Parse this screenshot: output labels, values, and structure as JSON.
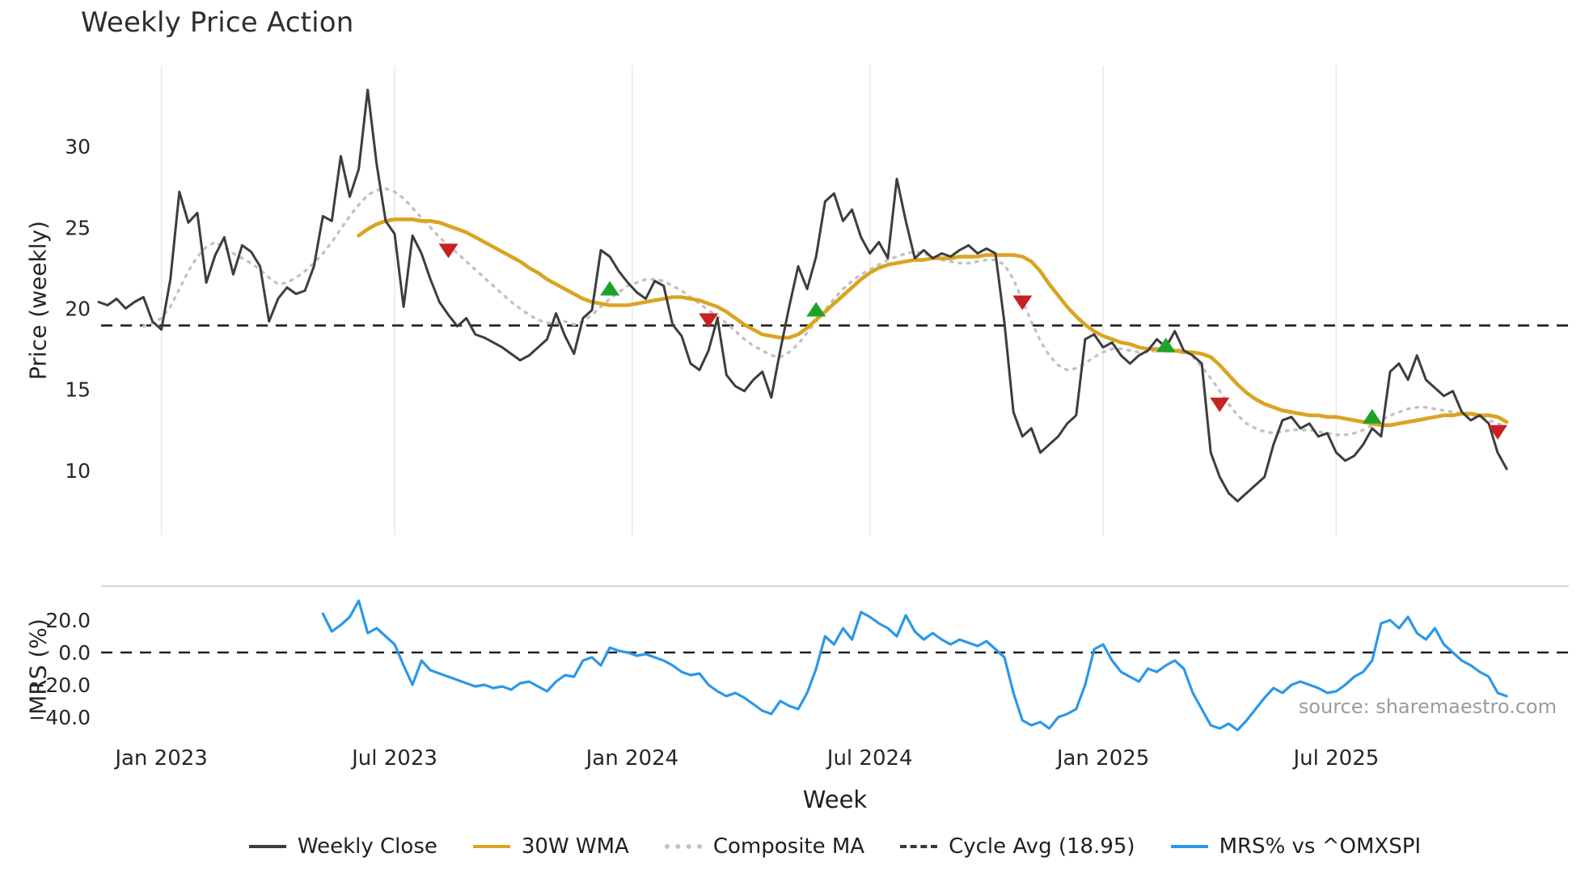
{
  "chart_data": {
    "type": "line",
    "title": "Weekly Price Action",
    "xlabel": "Week",
    "ylabel_price": "Price (weekly)",
    "ylabel_mrs": "MRS (%)",
    "source": "source: sharemaestro.com",
    "cycle_avg": 18.95,
    "ylim_price": [
      6,
      35
    ],
    "ylim_mrs": [
      -55,
      38
    ],
    "grid": "vertical-only",
    "legend_position": "bottom-center",
    "price_ticks": [
      30,
      25,
      20,
      15,
      10
    ],
    "mrs_ticks": [
      {
        "v": 20,
        "label": "20.0"
      },
      {
        "v": 0,
        "label": "0.0"
      },
      {
        "v": -20,
        "label": "−20.0"
      },
      {
        "v": -40,
        "label": "−40.0"
      }
    ],
    "x_ticks": [
      {
        "i": 7,
        "label": "Jan 2023"
      },
      {
        "i": 33,
        "label": "Jul 2023"
      },
      {
        "i": 59.5,
        "label": "Jan 2024"
      },
      {
        "i": 86,
        "label": "Jul 2024"
      },
      {
        "i": 112,
        "label": "Jan 2025"
      },
      {
        "i": 138,
        "label": "Jul 2025"
      }
    ],
    "colors": {
      "buy": "#1ea32a",
      "sell": "#c62222"
    },
    "series": {
      "close": {
        "name": "Weekly Close",
        "color": "#3d3d3d",
        "start": 0,
        "values": [
          20.4,
          20.2,
          20.6,
          20.0,
          20.4,
          20.7,
          19.2,
          18.7,
          21.8,
          27.2,
          25.3,
          25.9,
          21.6,
          23.3,
          24.4,
          22.1,
          23.9,
          23.5,
          22.6,
          19.2,
          20.6,
          21.3,
          20.9,
          21.1,
          22.6,
          25.7,
          25.4,
          29.4,
          26.9,
          28.6,
          33.5,
          28.9,
          25.4,
          24.6,
          20.1,
          24.5,
          23.4,
          21.8,
          20.4,
          19.6,
          18.9,
          19.4,
          18.4,
          18.2,
          17.9,
          17.6,
          17.2,
          16.8,
          17.1,
          17.6,
          18.1,
          19.7,
          18.3,
          17.2,
          19.4,
          19.9,
          23.6,
          23.2,
          22.3,
          21.6,
          21.0,
          20.6,
          21.7,
          21.4,
          19.0,
          18.3,
          16.6,
          16.2,
          17.4,
          19.4,
          15.9,
          15.2,
          14.9,
          15.6,
          16.1,
          14.5,
          17.4,
          20.1,
          22.6,
          21.2,
          23.2,
          26.6,
          27.1,
          25.4,
          26.1,
          24.4,
          23.4,
          24.1,
          23.1,
          28.0,
          25.4,
          23.1,
          23.6,
          23.1,
          23.4,
          23.2,
          23.6,
          23.9,
          23.4,
          23.7,
          23.4,
          19.1,
          13.6,
          12.1,
          12.6,
          11.1,
          11.6,
          12.1,
          12.9,
          13.4,
          18.1,
          18.4,
          17.6,
          17.9,
          17.1,
          16.6,
          17.1,
          17.4,
          18.1,
          17.6,
          18.6,
          17.4,
          17.1,
          16.6,
          11.1,
          9.6,
          8.6,
          8.1,
          8.6,
          9.1,
          9.6,
          11.6,
          13.1,
          13.3,
          12.6,
          12.9,
          12.1,
          12.3,
          11.1,
          10.6,
          10.9,
          11.6,
          12.6,
          12.1,
          16.1,
          16.6,
          15.6,
          17.1,
          15.6,
          15.1,
          14.6,
          14.9,
          13.6,
          13.1,
          13.4,
          12.9,
          11.1,
          10.1
        ]
      },
      "wma30": {
        "name": "30W WMA",
        "color": "#d9a521",
        "start": 29,
        "values": [
          24.5,
          24.9,
          25.2,
          25.4,
          25.5,
          25.5,
          25.5,
          25.4,
          25.4,
          25.3,
          25.1,
          24.9,
          24.7,
          24.4,
          24.1,
          23.8,
          23.5,
          23.2,
          22.9,
          22.5,
          22.2,
          21.8,
          21.5,
          21.2,
          20.9,
          20.6,
          20.4,
          20.3,
          20.2,
          20.2,
          20.2,
          20.3,
          20.4,
          20.5,
          20.6,
          20.7,
          20.7,
          20.6,
          20.5,
          20.3,
          20.1,
          19.8,
          19.4,
          19.0,
          18.7,
          18.4,
          18.3,
          18.2,
          18.2,
          18.4,
          18.8,
          19.3,
          19.8,
          20.3,
          20.8,
          21.3,
          21.8,
          22.2,
          22.5,
          22.7,
          22.8,
          22.9,
          23.0,
          23.0,
          23.1,
          23.1,
          23.1,
          23.2,
          23.2,
          23.2,
          23.3,
          23.3,
          23.3,
          23.3,
          23.2,
          22.9,
          22.3,
          21.5,
          20.8,
          20.1,
          19.5,
          19.0,
          18.6,
          18.3,
          18.1,
          17.9,
          17.8,
          17.6,
          17.5,
          17.5,
          17.4,
          17.4,
          17.3,
          17.3,
          17.2,
          17.0,
          16.5,
          15.9,
          15.3,
          14.8,
          14.4,
          14.1,
          13.9,
          13.7,
          13.6,
          13.5,
          13.4,
          13.4,
          13.3,
          13.3,
          13.2,
          13.1,
          13.0,
          12.9,
          12.8,
          12.8,
          12.9,
          13.0,
          13.1,
          13.2,
          13.3,
          13.4,
          13.4,
          13.5,
          13.5,
          13.4,
          13.4,
          13.3,
          13.0
        ]
      },
      "composite": {
        "name": "Composite MA",
        "color": "#c2c2c2",
        "start": 5,
        "values": [
          18.9,
          19.1,
          19.4,
          20.1,
          21.2,
          22.3,
          23.2,
          23.8,
          24.1,
          23.8,
          23.4,
          23.1,
          22.8,
          22.4,
          21.9,
          21.5,
          21.6,
          21.9,
          22.3,
          22.8,
          23.4,
          24.1,
          24.9,
          25.7,
          26.4,
          27.0,
          27.3,
          27.4,
          27.2,
          26.8,
          26.2,
          25.6,
          25.0,
          24.4,
          23.9,
          23.4,
          22.9,
          22.4,
          21.9,
          21.4,
          20.9,
          20.4,
          20.0,
          19.6,
          19.3,
          19.1,
          19.1,
          19.2,
          19.0,
          19.2,
          19.6,
          20.1,
          20.6,
          21.0,
          21.4,
          21.6,
          21.8,
          21.8,
          21.7,
          21.4,
          21.1,
          20.7,
          20.3,
          19.9,
          19.5,
          19.1,
          18.6,
          18.1,
          17.7,
          17.4,
          17.1,
          17.0,
          17.3,
          17.8,
          18.5,
          19.2,
          19.9,
          20.6,
          21.2,
          21.7,
          22.1,
          22.4,
          22.7,
          23.0,
          23.2,
          23.4,
          23.5,
          23.4,
          23.2,
          23.0,
          22.9,
          22.8,
          22.8,
          22.9,
          23.0,
          23.0,
          22.7,
          21.8,
          20.5,
          19.2,
          18.0,
          17.1,
          16.5,
          16.2,
          16.3,
          16.6,
          17.0,
          17.3,
          17.5,
          17.5,
          17.4,
          17.3,
          17.3,
          17.4,
          17.5,
          17.5,
          17.4,
          17.0,
          16.4,
          15.7,
          14.9,
          14.1,
          13.4,
          12.9,
          12.6,
          12.4,
          12.3,
          12.4,
          12.5,
          12.5,
          12.5,
          12.4,
          12.3,
          12.2,
          12.2,
          12.3,
          12.5,
          12.8,
          13.1,
          13.4,
          13.6,
          13.8,
          13.9,
          13.9,
          13.8,
          13.7,
          13.6,
          13.5,
          13.4,
          13.3,
          13.1,
          12.9,
          12.7
        ]
      },
      "mrs": {
        "name": "MRS% vs ^OMXSPI",
        "color": "#2b98e8",
        "start": 25,
        "values": [
          24,
          13,
          17,
          22,
          32,
          12,
          15,
          10,
          5,
          -8,
          -20,
          -5,
          -11,
          -13,
          -15,
          -17,
          -19,
          -21,
          -20,
          -22,
          -21,
          -23,
          -19,
          -18,
          -21,
          -24,
          -18,
          -14,
          -15,
          -5,
          -3,
          -8,
          3,
          1,
          0,
          -2,
          -1,
          -3,
          -5,
          -8,
          -12,
          -14,
          -13,
          -20,
          -24,
          -27,
          -25,
          -28,
          -32,
          -36,
          -38,
          -30,
          -33,
          -35,
          -25,
          -10,
          10,
          5,
          15,
          8,
          25,
          22,
          18,
          15,
          10,
          23,
          13,
          8,
          12,
          8,
          5,
          8,
          6,
          4,
          7,
          2,
          -3,
          -25,
          -42,
          -45,
          -43,
          -47,
          -40,
          -38,
          -35,
          -20,
          2,
          5,
          -5,
          -12,
          -15,
          -18,
          -10,
          -12,
          -8,
          -5,
          -10,
          -25,
          -35,
          -45,
          -47,
          -44,
          -48,
          -42,
          -35,
          -28,
          -22,
          -25,
          -20,
          -18,
          -20,
          -22,
          -25,
          -24,
          -20,
          -15,
          -12,
          -5,
          18,
          20,
          15,
          22,
          12,
          8,
          15,
          5,
          0,
          -5,
          -8,
          -12,
          -15,
          -25,
          -27
        ]
      }
    },
    "signals": [
      {
        "i": 39,
        "price": 23.6,
        "type": "sell"
      },
      {
        "i": 57,
        "price": 21.2,
        "type": "buy"
      },
      {
        "i": 68,
        "price": 19.3,
        "type": "sell"
      },
      {
        "i": 80,
        "price": 19.9,
        "type": "buy"
      },
      {
        "i": 103,
        "price": 20.4,
        "type": "sell"
      },
      {
        "i": 119,
        "price": 17.7,
        "type": "buy"
      },
      {
        "i": 125,
        "price": 14.1,
        "type": "sell"
      },
      {
        "i": 142,
        "price": 13.3,
        "type": "buy"
      },
      {
        "i": 156,
        "price": 12.4,
        "type": "sell"
      }
    ],
    "legend": [
      {
        "label": "Weekly Close",
        "color": "#3d3d3d",
        "style": "solid"
      },
      {
        "label": "30W WMA",
        "color": "#d9a521",
        "style": "solid"
      },
      {
        "label": "Composite MA",
        "color": "#c2c2c2",
        "style": "dotted"
      },
      {
        "label": "Cycle Avg (18.95)",
        "color": "#3a3a3a",
        "style": "dashed"
      },
      {
        "label": "MRS% vs ^OMXSPI",
        "color": "#2b98e8",
        "style": "solid"
      }
    ]
  }
}
